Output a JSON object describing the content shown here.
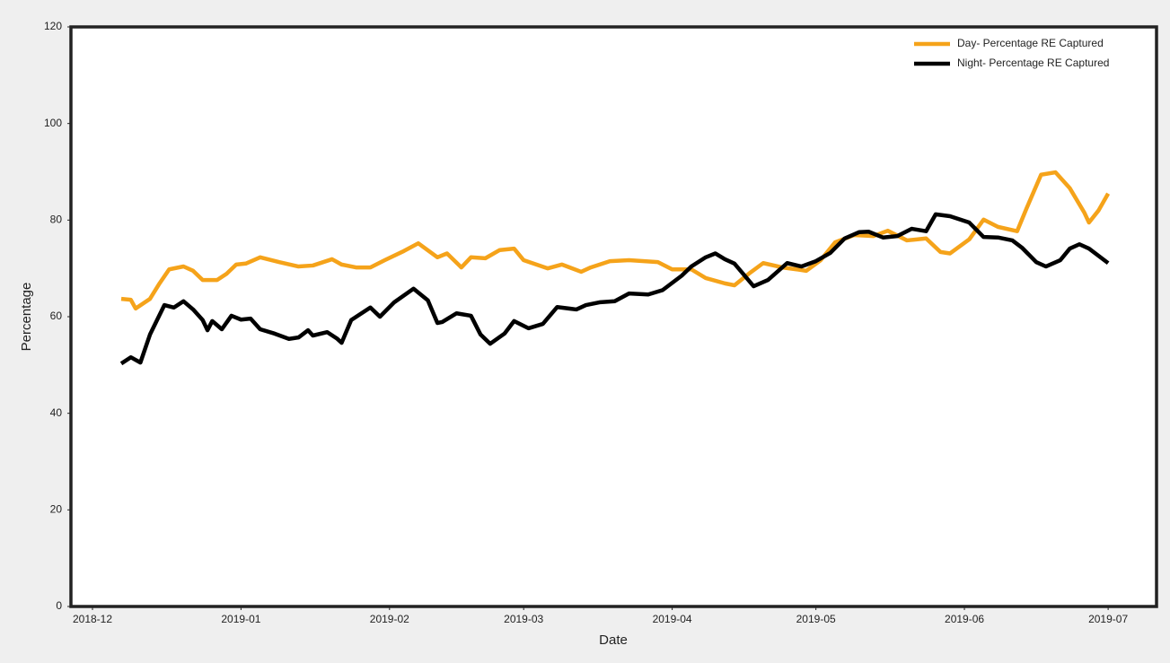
{
  "chart_data": {
    "type": "line",
    "xlabel": "Date",
    "ylabel": "Percentage",
    "xlim": [
      -4.5,
      222.1
    ],
    "ylim": [
      0,
      120
    ],
    "xticks": [
      {
        "value": 0,
        "label": "2018-12"
      },
      {
        "value": 31,
        "label": "2019-01"
      },
      {
        "value": 62,
        "label": "2019-02"
      },
      {
        "value": 90,
        "label": "2019-03"
      },
      {
        "value": 121,
        "label": "2019-04"
      },
      {
        "value": 151,
        "label": "2019-05"
      },
      {
        "value": 182,
        "label": "2019-06"
      },
      {
        "value": 212,
        "label": "2019-07"
      }
    ],
    "yticks": [
      0,
      20,
      40,
      60,
      80,
      100,
      120
    ],
    "legend": "upper right",
    "series": [
      {
        "name": "Day- Percentage RE Captured",
        "color": "#f5a31a",
        "x": [
          6,
          8,
          9,
          12,
          14,
          16,
          19,
          21,
          23,
          26,
          28,
          30,
          32,
          35,
          39,
          43,
          46,
          50,
          52,
          55,
          58,
          61,
          65,
          68,
          72,
          74,
          77,
          79,
          82,
          85,
          88,
          90,
          95,
          98,
          102,
          104,
          108,
          112,
          118,
          121,
          125,
          128,
          132,
          134,
          137,
          140,
          144,
          147,
          149,
          152,
          155,
          159,
          163,
          166,
          170,
          174,
          177,
          179,
          183,
          186,
          189,
          193,
          195,
          198,
          201,
          204,
          207,
          208,
          210,
          212
        ],
        "values": [
          63.7,
          63.5,
          61.7,
          63.7,
          66.9,
          69.8,
          70.4,
          69.5,
          67.6,
          67.6,
          68.9,
          70.8,
          71,
          72.3,
          71.3,
          70.4,
          70.6,
          71.9,
          70.8,
          70.2,
          70.2,
          71.7,
          73.6,
          75.2,
          72.3,
          73.1,
          70.2,
          72.3,
          72.1,
          73.8,
          74.1,
          71.7,
          70,
          70.8,
          69.3,
          70.2,
          71.5,
          71.7,
          71.3,
          69.8,
          69.8,
          68,
          66.9,
          66.5,
          68.9,
          71.1,
          70.2,
          69.8,
          69.5,
          71.7,
          75.4,
          76.9,
          76.7,
          77.8,
          75.8,
          76.2,
          73.4,
          73.1,
          76,
          80.1,
          78.6,
          77.7,
          82.5,
          89.4,
          89.9,
          86.6,
          81.6,
          79.5,
          82,
          85.5
        ]
      },
      {
        "name": "Night- Percentage RE Captured",
        "color": "#000000",
        "x": [
          6,
          8,
          10,
          12,
          15,
          17,
          19,
          21,
          23,
          24,
          25,
          27,
          29,
          31,
          33,
          35,
          38,
          41,
          43,
          45,
          46,
          49,
          51,
          52,
          54,
          58,
          60,
          63,
          67,
          70,
          72,
          73,
          76,
          79,
          81,
          83,
          86,
          88,
          91,
          94,
          97,
          101,
          103,
          106,
          109,
          112,
          116,
          119,
          123,
          125,
          128,
          130,
          132,
          134,
          138,
          141,
          145,
          148,
          151,
          154,
          157,
          160,
          162,
          165,
          168,
          171,
          174,
          176,
          179,
          183,
          186,
          189,
          192,
          194,
          197,
          199,
          202,
          204,
          206,
          208,
          212
        ],
        "values": [
          50.3,
          51.6,
          50.5,
          56.3,
          62.4,
          61.9,
          63.2,
          61.5,
          59.3,
          57.2,
          59.1,
          57.4,
          60.2,
          59.4,
          59.6,
          57.4,
          56.5,
          55.4,
          55.7,
          57.2,
          56.1,
          56.8,
          55.5,
          54.6,
          59.3,
          61.9,
          60,
          63,
          65.8,
          63.4,
          58.7,
          58.9,
          60.7,
          60.2,
          56.3,
          54.4,
          56.5,
          59.1,
          57.6,
          58.5,
          62,
          61.5,
          62.4,
          63,
          63.2,
          64.8,
          64.6,
          65.5,
          68.5,
          70.4,
          72.3,
          73.1,
          71.9,
          71,
          66.3,
          67.6,
          71.1,
          70.4,
          71.5,
          73.2,
          76.2,
          77.5,
          77.6,
          76.4,
          76.7,
          78.2,
          77.7,
          81.2,
          80.8,
          79.5,
          76.5,
          76.4,
          75.8,
          74.3,
          71.3,
          70.4,
          71.7,
          74.1,
          75,
          74.1,
          71.1
        ]
      }
    ]
  }
}
